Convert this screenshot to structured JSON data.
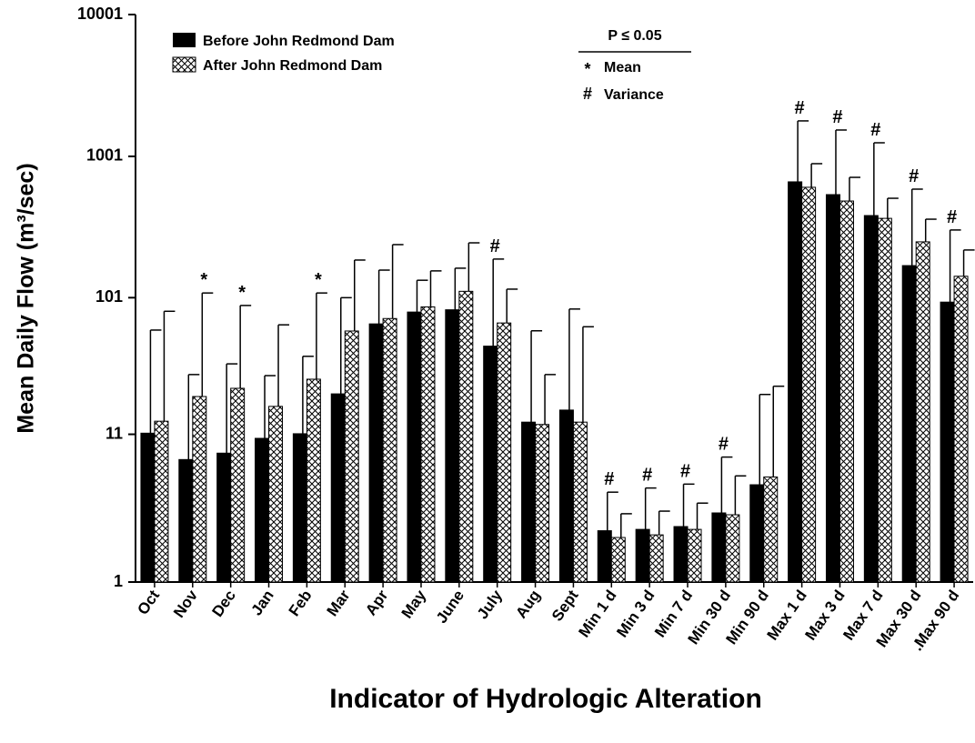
{
  "chart_data": {
    "type": "bar",
    "y_label": "Mean Daily Flow (m³/sec)",
    "x_label": "Indicator of Hydrologic Alteration",
    "log_scale": true,
    "ylim": [
      1,
      10001
    ],
    "yticks": [
      1,
      11,
      101,
      1001,
      10001
    ],
    "categories": [
      "Oct",
      "Nov",
      "Dec",
      "Jan",
      "Feb",
      "Mar",
      "Apr",
      "May",
      "June",
      "July",
      "Aug",
      "Sept",
      "Min 1 d",
      "Min 3 d",
      "Min 7 d",
      "Min 30 d",
      "Min 90 d",
      "Max 1 d",
      "Max 3 d",
      "Max 7 d",
      "Max 30 d",
      ".Max 90 d"
    ],
    "series": [
      {
        "name": "Before John Redmond Dam",
        "color": "#000000",
        "pattern": "solid",
        "values": [
          11.2,
          7.3,
          8.1,
          10.3,
          11.1,
          21.2,
          66,
          80,
          83,
          46,
          13.4,
          16.3,
          2.3,
          2.35,
          2.46,
          3.07,
          4.85,
          662,
          538,
          383,
          170,
          94
        ],
        "error_top": [
          59.7,
          29,
          34.5,
          28.5,
          39,
          101,
          158,
          134,
          163,
          189,
          59,
          84,
          4.3,
          4.6,
          4.9,
          7.6,
          21,
          1780,
          1535,
          1248,
          588,
          303
        ]
      },
      {
        "name": "After John Redmond Dam",
        "color": "#000000",
        "pattern": "crosshatch",
        "values": [
          13.6,
          20.3,
          23.2,
          17.3,
          26.9,
          58.8,
          72,
          87,
          112,
          67,
          12.9,
          13.4,
          2.06,
          2.15,
          2.35,
          2.98,
          5.5,
          606,
          485,
          366,
          250,
          143
        ],
        "error_top": [
          81,
          109,
          89,
          65,
          109,
          186,
          239,
          156,
          246,
          116,
          29,
          63,
          3.03,
          3.16,
          3.6,
          5.6,
          24,
          889,
          712,
          507,
          361,
          219
        ]
      }
    ],
    "significance": [
      null,
      "*",
      "*",
      null,
      "*",
      null,
      null,
      null,
      null,
      "#",
      null,
      null,
      "#",
      "#",
      "#",
      "#",
      null,
      "#",
      "#",
      "#",
      "#",
      "#"
    ],
    "key": {
      "title": "P ≤ 0.05",
      "items": [
        {
          "symbol": "*",
          "label": "Mean"
        },
        {
          "symbol": "#",
          "label": "Variance"
        }
      ]
    }
  }
}
